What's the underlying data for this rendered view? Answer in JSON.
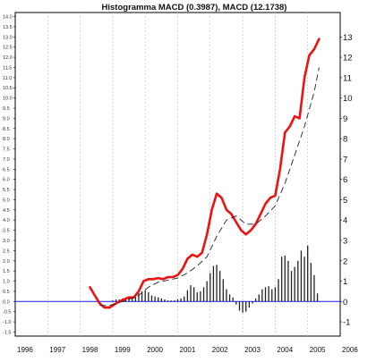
{
  "title": "Histogramma MACD (0.3987), MACD (12.1738)",
  "chart_data": {
    "type": "line",
    "title": "Histogramma MACD (0.3987), MACD (12.1738)",
    "xlabel": "",
    "ylabel": "",
    "x_ticks": [
      "1996",
      "1997",
      "1998",
      "1999",
      "2000",
      "2001",
      "2002",
      "2003",
      "2004",
      "2005",
      "2006"
    ],
    "y_ticks_left": [
      "14.0",
      "13.5",
      "13.0",
      "12.5",
      "12.0",
      "11.5",
      "11.0",
      "10.5",
      "10.0",
      "9.5",
      "9.0",
      "8.5",
      "8.0",
      "7.5",
      "7.0",
      "6.5",
      "6.0",
      "5.5",
      "5.0",
      "4.5",
      "4.0",
      "3.5",
      "3.0",
      "2.5",
      "2.0",
      "1.5",
      "1.0",
      "0.5",
      "0.0",
      "-0.5",
      "-1.0",
      "-1.5"
    ],
    "y_ticks_right": [
      "13",
      "12",
      "11",
      "10",
      "9",
      "8",
      "7",
      "6",
      "5",
      "4",
      "3",
      "2",
      "1",
      "0",
      "-1"
    ],
    "xlim": [
      1996.0,
      2006.0
    ],
    "ylim": [
      -1.7,
      14.2
    ],
    "grid": true,
    "zero_line": 0,
    "colors": {
      "macd": "#ee1111",
      "signal": "#222222",
      "histogram": "#222222",
      "zero_line": "#3333ee",
      "grid": "#bbbbbb"
    },
    "series": [
      {
        "style": "thick-red",
        "x": [
          1998.3,
          1998.45,
          1998.6,
          1998.75,
          1998.9,
          1999.05,
          1999.2,
          1999.35,
          1999.5,
          1999.65,
          1999.8,
          1999.95,
          2000.1,
          2000.25,
          2000.4,
          2000.55,
          2000.7,
          2000.85,
          2001.0,
          2001.15,
          2001.3,
          2001.45,
          2001.6,
          2001.75,
          2001.9,
          2002.05,
          2002.2,
          2002.35,
          2002.5,
          2002.65,
          2002.8,
          2002.95,
          2003.1,
          2003.25,
          2003.4,
          2003.55,
          2003.7,
          2003.85,
          2004.0,
          2004.15,
          2004.3,
          2004.45,
          2004.6,
          2004.75,
          2004.9,
          2005.05,
          2005.2,
          2005.35
        ],
        "values": [
          0.7,
          0.3,
          -0.1,
          -0.3,
          -0.3,
          -0.15,
          0.0,
          0.1,
          0.2,
          0.2,
          0.5,
          1.0,
          1.1,
          1.1,
          1.15,
          1.1,
          1.2,
          1.2,
          1.3,
          1.6,
          2.1,
          2.3,
          2.2,
          2.4,
          3.3,
          4.5,
          5.3,
          5.1,
          4.5,
          4.3,
          3.9,
          3.5,
          3.3,
          3.5,
          3.8,
          4.3,
          4.8,
          5.1,
          5.2,
          6.5,
          8.3,
          8.6,
          9.1,
          9.0,
          11.0,
          12.1,
          12.4,
          12.9
        ]
      },
      {
        "style": "dashed-black",
        "x": [
          1998.6,
          1998.9,
          1999.2,
          1999.5,
          1999.8,
          2000.1,
          2000.4,
          2000.7,
          2001.0,
          2001.3,
          2001.6,
          2001.9,
          2002.2,
          2002.5,
          2002.8,
          2003.1,
          2003.4,
          2003.7,
          2004.0,
          2004.3,
          2004.6,
          2004.9,
          2005.2,
          2005.35
        ],
        "values": [
          -0.2,
          -0.2,
          -0.05,
          0.1,
          0.3,
          0.7,
          0.95,
          1.05,
          1.15,
          1.4,
          1.75,
          2.2,
          3.2,
          4.0,
          4.2,
          3.8,
          3.8,
          4.2,
          4.7,
          5.8,
          7.2,
          8.6,
          10.3,
          11.5
        ]
      }
    ],
    "histogram": {
      "x": [
        1999.0,
        1999.1,
        1999.2,
        1999.3,
        1999.4,
        1999.5,
        1999.6,
        1999.7,
        1999.8,
        1999.9,
        2000.0,
        2000.1,
        2000.2,
        2000.3,
        2000.4,
        2000.5,
        2000.6,
        2000.7,
        2000.8,
        2000.9,
        2001.0,
        2001.1,
        2001.2,
        2001.3,
        2001.4,
        2001.5,
        2001.6,
        2001.7,
        2001.8,
        2001.9,
        2002.0,
        2002.1,
        2002.2,
        2002.3,
        2002.4,
        2002.5,
        2002.6,
        2002.7,
        2002.8,
        2002.9,
        2003.0,
        2003.1,
        2003.2,
        2003.3,
        2003.4,
        2003.5,
        2003.6,
        2003.7,
        2003.8,
        2003.9,
        2004.0,
        2004.1,
        2004.2,
        2004.3,
        2004.4,
        2004.5,
        2004.6,
        2004.7,
        2004.8,
        2004.9,
        2005.0,
        2005.1,
        2005.2,
        2005.3
      ],
      "values": [
        0.05,
        0.1,
        0.1,
        0.15,
        0.2,
        0.15,
        0.25,
        0.3,
        0.4,
        0.5,
        0.55,
        0.45,
        0.3,
        0.25,
        0.2,
        0.15,
        0.1,
        0.05,
        0.05,
        0.05,
        0.1,
        0.15,
        0.25,
        0.55,
        0.8,
        0.7,
        0.45,
        0.5,
        0.7,
        1.0,
        1.4,
        1.75,
        1.8,
        1.5,
        1.1,
        0.6,
        0.35,
        0.2,
        -0.15,
        -0.45,
        -0.55,
        -0.5,
        -0.3,
        -0.1,
        0.15,
        0.35,
        0.6,
        0.7,
        0.75,
        0.6,
        0.7,
        1.1,
        2.2,
        2.25,
        2.0,
        1.5,
        1.7,
        2.0,
        2.5,
        2.2,
        2.75,
        1.9,
        1.3,
        0.4
      ]
    }
  }
}
